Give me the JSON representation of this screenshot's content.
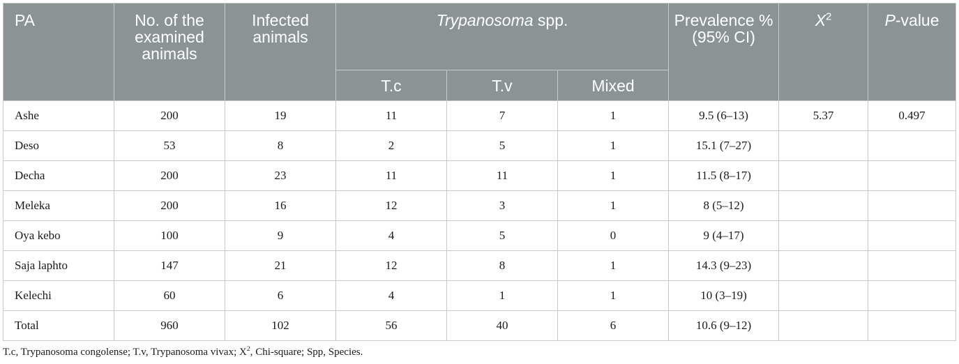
{
  "table": {
    "headers": {
      "pa": "PA",
      "examined": "No. of the examined animals",
      "infected": "Infected animals",
      "species_italic": "Trypanosoma",
      "species_rest": " spp.",
      "prevalence": "Prevalence % (95% CI)",
      "chi_base": "X",
      "chi_sup": "2",
      "pvalue_italic": "P",
      "pvalue_rest": "-value",
      "sub": [
        "T.c",
        "T.v",
        "Mixed"
      ]
    },
    "rows": [
      {
        "pa": "Ashe",
        "examined": "200",
        "infected": "19",
        "tc": "11",
        "tv": "7",
        "mixed": "1",
        "prevalence": "9.5 (6–13)",
        "chi": "5.37",
        "p": "0.497"
      },
      {
        "pa": "Deso",
        "examined": "53",
        "infected": "8",
        "tc": "2",
        "tv": "5",
        "mixed": "1",
        "prevalence": "15.1 (7–27)",
        "chi": "",
        "p": ""
      },
      {
        "pa": "Decha",
        "examined": "200",
        "infected": "23",
        "tc": "11",
        "tv": "11",
        "mixed": "1",
        "prevalence": "11.5 (8–17)",
        "chi": "",
        "p": ""
      },
      {
        "pa": "Meleka",
        "examined": "200",
        "infected": "16",
        "tc": "12",
        "tv": "3",
        "mixed": "1",
        "prevalence": "8 (5–12)",
        "chi": "",
        "p": ""
      },
      {
        "pa": "Oya kebo",
        "examined": "100",
        "infected": "9",
        "tc": "4",
        "tv": "5",
        "mixed": "0",
        "prevalence": "9 (4–17)",
        "chi": "",
        "p": ""
      },
      {
        "pa": "Saja laphto",
        "examined": "147",
        "infected": "21",
        "tc": "12",
        "tv": "8",
        "mixed": "1",
        "prevalence": "14.3 (9–23)",
        "chi": "",
        "p": ""
      },
      {
        "pa": "Kelechi",
        "examined": "60",
        "infected": "6",
        "tc": "4",
        "tv": "1",
        "mixed": "1",
        "prevalence": "10 (3–19)",
        "chi": "",
        "p": ""
      },
      {
        "pa": "Total",
        "examined": "960",
        "infected": "102",
        "tc": "56",
        "tv": "40",
        "mixed": "6",
        "prevalence": "10.6 (9–12)",
        "chi": "",
        "p": ""
      }
    ]
  },
  "footnote": {
    "part1": "T.c, Trypanosoma congolense; T.v, Trypanosoma vivax; X",
    "sup": "2",
    "part2": ", Chi-square; Spp, Species."
  }
}
